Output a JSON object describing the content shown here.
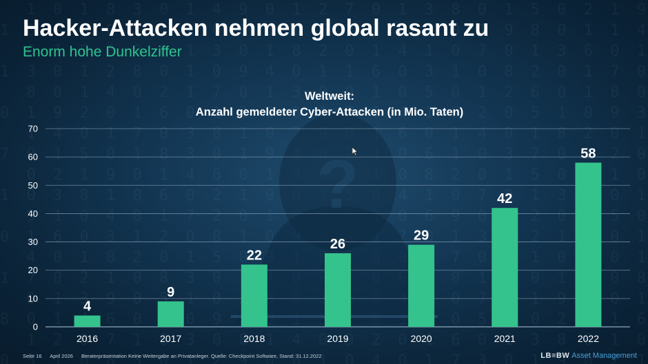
{
  "slide": {
    "title": "Hacker-Attacken nehmen global rasant zu",
    "subtitle": "Enorm hohe Dunkelziffer"
  },
  "footer": {
    "page": "Seite 16",
    "date": "April 2026",
    "note": "Beraterpräsentation  Keine Weitergabe an Privatanleger. Quelle: Checkpoint Software, Stand: 31.12.2022"
  },
  "logo": {
    "mark": "LB≡BW",
    "text": "Asset Management"
  },
  "colors": {
    "bar": "#34c38c",
    "title": "#ffffff",
    "subtitle": "#2ec48f",
    "grid": "#9fb7cb"
  },
  "chart_data": {
    "type": "bar",
    "title": [
      "Weltweit:",
      "Anzahl gemeldeter Cyber-Attacken (in Mio. Taten)"
    ],
    "categories": [
      "2016",
      "2017",
      "2018",
      "2019",
      "2020",
      "2021",
      "2022"
    ],
    "values": [
      4,
      9,
      22,
      26,
      29,
      42,
      58
    ],
    "data_labels": [
      "4",
      "9",
      "22",
      "26",
      "29",
      "42",
      "58"
    ],
    "yticks": [
      "0",
      "10",
      "20",
      "30",
      "40",
      "50",
      "60",
      "70"
    ],
    "ylim": [
      0,
      70
    ],
    "grid": true,
    "legend": false
  }
}
